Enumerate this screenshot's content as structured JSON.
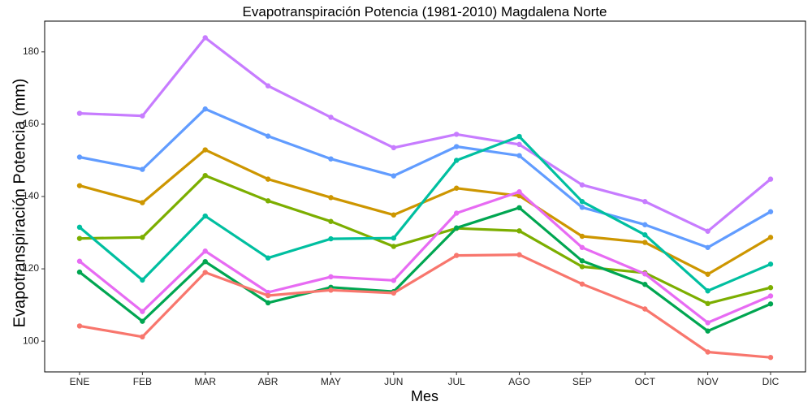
{
  "chart_data": {
    "type": "line",
    "title": "Evapotranspiración Potencia (1981-2010)  Magdalena Norte",
    "xlabel": "Mes",
    "ylabel": "Evapotranspiración Potencia  (mm)",
    "categories": [
      "ENE",
      "FEB",
      "MAR",
      "ABR",
      "MAY",
      "JUN",
      "JUL",
      "AGO",
      "SEP",
      "OCT",
      "NOV",
      "DIC"
    ],
    "yticks": [
      100,
      120,
      140,
      160,
      180
    ],
    "ylim": [
      91.5,
      188.5
    ],
    "grid": false,
    "legend": "none",
    "series": [
      {
        "color": "#C77CFF",
        "values": [
          163.0,
          162.3,
          183.9,
          170.6,
          161.9,
          153.5,
          157.2,
          154.4,
          143.2,
          138.6,
          130.4,
          144.8
        ]
      },
      {
        "color": "#619CFF",
        "values": [
          150.9,
          147.5,
          164.2,
          156.7,
          150.4,
          145.7,
          153.8,
          151.3,
          137.0,
          132.2,
          125.9,
          135.8
        ]
      },
      {
        "color": "#CD9600",
        "values": [
          143.0,
          138.3,
          152.9,
          144.8,
          139.7,
          134.9,
          142.3,
          140.2,
          129.0,
          127.3,
          118.5,
          128.7
        ]
      },
      {
        "color": "#7CAE00",
        "values": [
          128.4,
          128.7,
          145.8,
          138.8,
          133.1,
          126.2,
          131.2,
          130.5,
          120.6,
          118.9,
          110.4,
          114.8
        ]
      },
      {
        "color": "#00BFA0",
        "values": [
          131.5,
          116.9,
          134.6,
          123.0,
          128.3,
          128.5,
          150.0,
          156.6,
          138.6,
          129.4,
          113.9,
          121.3
        ]
      },
      {
        "color": "#E76BF3",
        "values": [
          122.1,
          108.2,
          124.9,
          113.5,
          117.8,
          116.8,
          135.4,
          141.3,
          125.9,
          118.6,
          105.1,
          112.5
        ]
      },
      {
        "color": "#00A651",
        "values": [
          119.1,
          105.5,
          122.0,
          110.6,
          114.9,
          113.7,
          131.3,
          136.9,
          122.2,
          115.7,
          102.8,
          110.3
        ]
      },
      {
        "color": "#F8766D",
        "values": [
          104.2,
          101.2,
          119.0,
          112.6,
          114.1,
          113.3,
          123.7,
          123.9,
          115.8,
          108.9,
          97.0,
          95.5
        ]
      }
    ]
  }
}
